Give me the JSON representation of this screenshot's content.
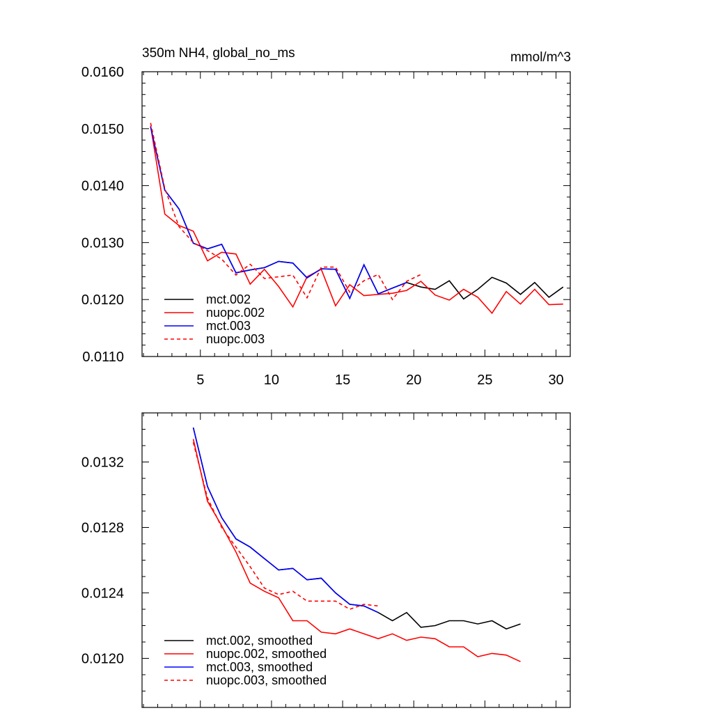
{
  "colors": {
    "black": "#000000",
    "red": "#ff0000",
    "blue": "#0000ff"
  },
  "chart_data": [
    {
      "type": "line",
      "title": "350m NH4, global_no_ms",
      "units": "mmol/m^3",
      "xlabel": "",
      "ylabel": "",
      "xlim": [
        0.9,
        31.0
      ],
      "ylim": [
        0.011,
        0.016
      ],
      "x_ticks": [
        5,
        10,
        15,
        20,
        25,
        30
      ],
      "x_tick_labels": [
        "5",
        "10",
        "15",
        "20",
        "25",
        "30"
      ],
      "y_ticks": [
        0.011,
        0.012,
        0.013,
        0.014,
        0.015,
        0.016
      ],
      "y_tick_labels": [
        "0.0110",
        "0.0120",
        "0.0130",
        "0.0140",
        "0.0150",
        "0.0160"
      ],
      "legend_position": "bottom-left",
      "series": [
        {
          "name": "mct.002",
          "color": "#000000",
          "dash": "solid",
          "x": [
            1.5,
            2.5,
            3.5,
            4.5,
            5.5,
            6.5,
            7.5,
            8.5,
            9.5,
            10.5,
            11.5,
            12.5,
            13.5,
            14.5,
            15.5,
            16.5,
            17.5,
            18.5,
            19.5,
            20.5,
            21.5,
            22.5,
            23.5,
            24.5,
            25.5,
            26.5,
            27.5,
            28.5,
            29.5,
            30.5
          ],
          "values": [
            0.01503,
            0.01392,
            0.01359,
            0.01299,
            0.01289,
            0.01297,
            0.01247,
            0.01252,
            0.01256,
            0.01267,
            0.01264,
            0.01238,
            0.01254,
            0.01253,
            0.01202,
            0.01261,
            0.0121,
            0.0122,
            0.0123,
            0.01222,
            0.01218,
            0.01233,
            0.01201,
            0.01218,
            0.01239,
            0.01229,
            0.01209,
            0.0123,
            0.01204,
            0.01222
          ]
        },
        {
          "name": "nuopc.002",
          "color": "#ff0000",
          "dash": "solid",
          "x": [
            1.5,
            2.5,
            3.5,
            4.5,
            5.5,
            6.5,
            7.5,
            8.5,
            9.5,
            10.5,
            11.5,
            12.5,
            13.5,
            14.5,
            15.5,
            16.5,
            17.5,
            18.5,
            19.5,
            20.5,
            21.5,
            22.5,
            23.5,
            24.5,
            25.5,
            26.5,
            27.5,
            28.5,
            29.5,
            30.5
          ],
          "values": [
            0.01505,
            0.0135,
            0.0133,
            0.0132,
            0.01268,
            0.01283,
            0.0128,
            0.01227,
            0.01253,
            0.01223,
            0.01187,
            0.0124,
            0.01253,
            0.01189,
            0.01226,
            0.01207,
            0.01209,
            0.01211,
            0.01216,
            0.01232,
            0.01208,
            0.01199,
            0.01218,
            0.01204,
            0.01176,
            0.01214,
            0.01192,
            0.01218,
            0.01191,
            0.01192
          ]
        },
        {
          "name": "mct.003",
          "color": "#0000ff",
          "dash": "solid",
          "x": [
            1.5,
            2.5,
            3.5,
            4.5,
            5.5,
            6.5,
            7.5,
            8.5,
            9.5,
            10.5,
            11.5,
            12.5,
            13.5,
            14.5,
            15.5,
            16.5,
            17.5,
            18.5,
            19.5
          ],
          "values": [
            0.01503,
            0.01392,
            0.01359,
            0.01299,
            0.01289,
            0.01297,
            0.01247,
            0.01252,
            0.01256,
            0.01267,
            0.01264,
            0.01238,
            0.01254,
            0.01253,
            0.01202,
            0.01261,
            0.0121,
            0.0122,
            0.0123
          ]
        },
        {
          "name": "nuopc.003",
          "color": "#ff0000",
          "dash": "dashed",
          "x": [
            1.5,
            2.5,
            3.5,
            4.5,
            5.5,
            6.5,
            7.5,
            8.5,
            9.5,
            10.5,
            11.5,
            12.5,
            13.5,
            14.5,
            15.5,
            16.5,
            17.5,
            18.5,
            19.5,
            20.5
          ],
          "values": [
            0.0151,
            0.01395,
            0.01328,
            0.013,
            0.01286,
            0.01271,
            0.01243,
            0.01262,
            0.01237,
            0.0124,
            0.01243,
            0.01203,
            0.01257,
            0.01257,
            0.01213,
            0.01233,
            0.01244,
            0.012,
            0.01232,
            0.01244
          ]
        }
      ]
    },
    {
      "type": "line",
      "title": "",
      "xlabel": "",
      "ylabel": "",
      "xlim": [
        0.9,
        31.0
      ],
      "ylim": [
        0.0117,
        0.0135
      ],
      "x_ticks": [
        5,
        10,
        15,
        20,
        25,
        30
      ],
      "x_tick_labels": [],
      "y_ticks": [
        0.012,
        0.0124,
        0.0128,
        0.0132
      ],
      "y_tick_labels": [
        "0.0120",
        "0.0124",
        "0.0128",
        "0.0132"
      ],
      "legend_position": "bottom-left",
      "series": [
        {
          "name": "mct.002, smoothed",
          "color": "#000000",
          "dash": "solid",
          "x": [
            4.5,
            5.5,
            6.5,
            7.5,
            8.5,
            9.5,
            10.5,
            11.5,
            12.5,
            13.5,
            14.5,
            15.5,
            16.5,
            17.5,
            18.5,
            19.5,
            20.5,
            21.5,
            22.5,
            23.5,
            24.5,
            25.5,
            26.5,
            27.5
          ],
          "values": [
            0.01341,
            0.01305,
            0.01286,
            0.01273,
            0.01268,
            0.01261,
            0.01254,
            0.01255,
            0.01248,
            0.01249,
            0.0124,
            0.01233,
            0.01232,
            0.01228,
            0.01223,
            0.01228,
            0.01219,
            0.0122,
            0.01223,
            0.01223,
            0.01221,
            0.01223,
            0.01218,
            0.01221
          ]
        },
        {
          "name": "nuopc.002, smoothed",
          "color": "#ff0000",
          "dash": "solid",
          "x": [
            4.5,
            5.5,
            6.5,
            7.5,
            8.5,
            9.5,
            10.5,
            11.5,
            12.5,
            13.5,
            14.5,
            15.5,
            16.5,
            17.5,
            18.5,
            19.5,
            20.5,
            21.5,
            22.5,
            23.5,
            24.5,
            25.5,
            26.5,
            27.5
          ],
          "values": [
            0.01334,
            0.01296,
            0.01281,
            0.01265,
            0.01246,
            0.01241,
            0.01237,
            0.01223,
            0.01223,
            0.01216,
            0.01215,
            0.01218,
            0.01215,
            0.01212,
            0.01215,
            0.01211,
            0.01213,
            0.01212,
            0.01207,
            0.01207,
            0.01201,
            0.01203,
            0.01202,
            0.01198
          ]
        },
        {
          "name": "mct.003, smoothed",
          "color": "#0000ff",
          "dash": "solid",
          "x": [
            4.5,
            5.5,
            6.5,
            7.5,
            8.5,
            9.5,
            10.5,
            11.5,
            12.5,
            13.5,
            14.5,
            15.5,
            16.5,
            17.5
          ],
          "values": [
            0.01341,
            0.01305,
            0.01286,
            0.01273,
            0.01268,
            0.01261,
            0.01254,
            0.01255,
            0.01248,
            0.01249,
            0.0124,
            0.01233,
            0.01232,
            0.01228
          ]
        },
        {
          "name": "nuopc.003, smoothed",
          "color": "#ff0000",
          "dash": "dashed",
          "x": [
            4.5,
            5.5,
            6.5,
            7.5,
            8.5,
            9.5,
            10.5,
            11.5,
            12.5,
            13.5,
            14.5,
            15.5,
            16.5,
            17.5
          ],
          "values": [
            0.01332,
            0.01298,
            0.0128,
            0.01268,
            0.01256,
            0.01243,
            0.01239,
            0.01241,
            0.01235,
            0.01235,
            0.01235,
            0.0123,
            0.01233,
            0.01232
          ]
        }
      ]
    }
  ]
}
